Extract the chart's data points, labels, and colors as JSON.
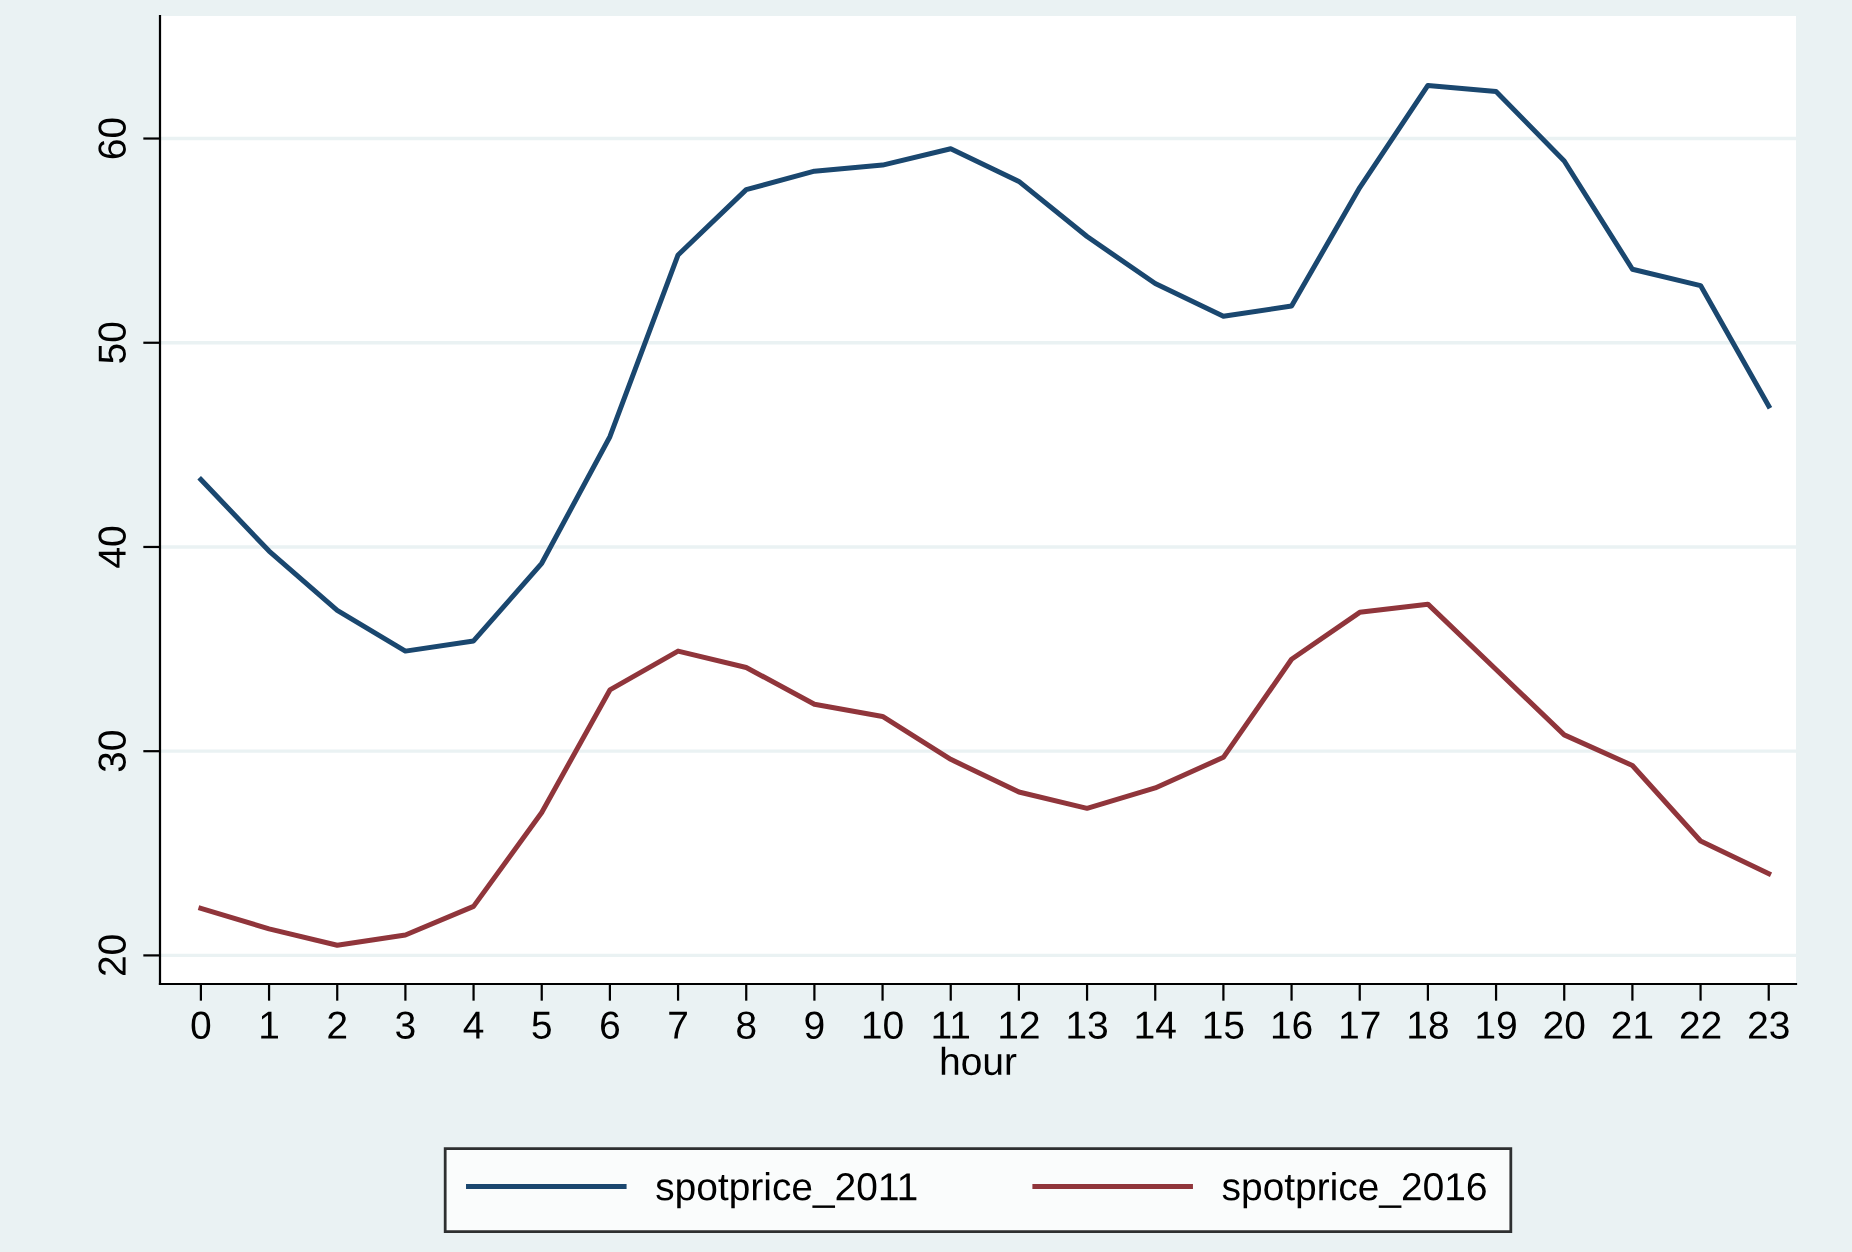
{
  "chart_data": {
    "type": "line",
    "xlabel": "hour",
    "x": [
      0,
      1,
      2,
      3,
      4,
      5,
      6,
      7,
      8,
      9,
      10,
      11,
      12,
      13,
      14,
      15,
      16,
      17,
      18,
      19,
      20,
      21,
      22,
      23
    ],
    "series": [
      {
        "name": "spotprice_2011",
        "color": "#1a476f",
        "values": [
          43.3,
          39.8,
          36.9,
          34.9,
          35.4,
          39.2,
          45.4,
          54.3,
          57.5,
          58.4,
          58.7,
          59.5,
          57.9,
          55.2,
          52.9,
          51.3,
          51.8,
          57.6,
          62.6,
          62.3,
          58.9,
          53.6,
          52.8,
          46.9
        ]
      },
      {
        "name": "spotprice_2016",
        "color": "#90353b",
        "values": [
          22.3,
          21.3,
          20.5,
          21.0,
          22.4,
          27.0,
          33.0,
          34.9,
          34.1,
          32.3,
          31.7,
          29.6,
          28.0,
          27.2,
          28.2,
          29.7,
          34.5,
          36.8,
          37.2,
          34.0,
          30.8,
          29.3,
          25.6,
          24.0
        ]
      }
    ],
    "xlim": [
      -0.6,
      23.4
    ],
    "xticks": [
      0,
      1,
      2,
      3,
      4,
      5,
      6,
      7,
      8,
      9,
      10,
      11,
      12,
      13,
      14,
      15,
      16,
      17,
      18,
      19,
      20,
      21,
      22,
      23
    ],
    "ylim": [
      18.6,
      66
    ],
    "yticks": [
      20,
      30,
      40,
      50,
      60
    ],
    "grid": "y",
    "legend": "bottom",
    "marker": "none",
    "line_style": "solid"
  }
}
